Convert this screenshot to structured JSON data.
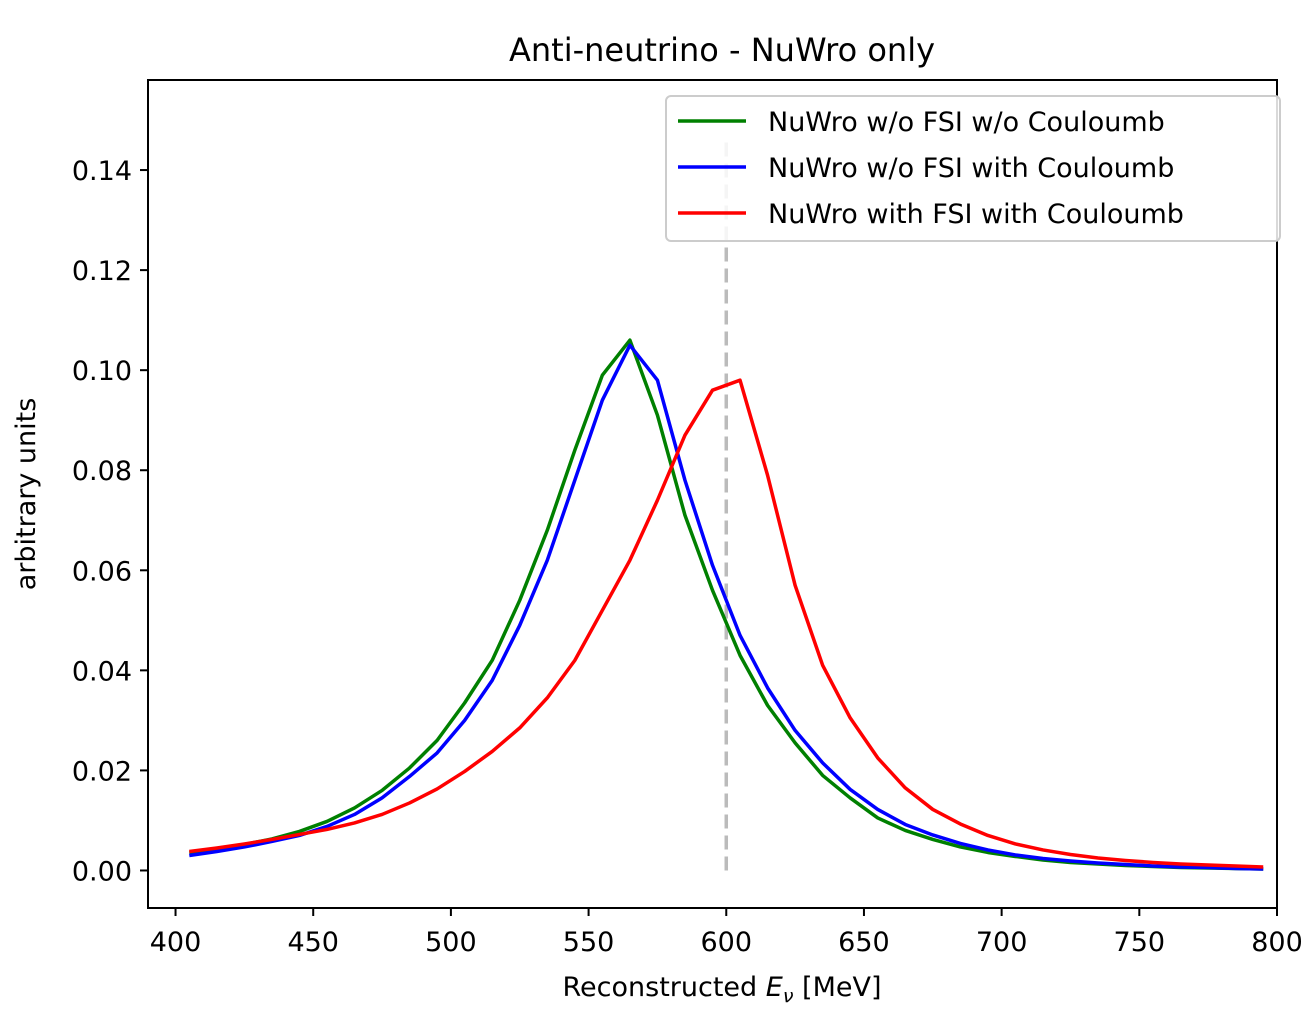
{
  "chart_data": {
    "type": "line",
    "title": "Anti-neutrino - NuWro only",
    "xlabel": {
      "prefix": "Reconstructed ",
      "symbol": "E",
      "subscript": "ν",
      "suffix": " [MeV]"
    },
    "ylabel": "arbitrary units",
    "xlim": [
      390,
      800
    ],
    "ylim": [
      -0.0075,
      0.158
    ],
    "xticks": [
      400,
      450,
      500,
      550,
      600,
      650,
      700,
      750,
      800
    ],
    "xtick_labels": [
      "400",
      "450",
      "500",
      "550",
      "600",
      "650",
      "700",
      "750",
      "800"
    ],
    "yticks": [
      0.0,
      0.02,
      0.04,
      0.06,
      0.08,
      0.1,
      0.12,
      0.14
    ],
    "ytick_labels": [
      "0.00",
      "0.02",
      "0.04",
      "0.06",
      "0.08",
      "0.10",
      "0.12",
      "0.14"
    ],
    "grid": false,
    "legend_position": "top-right",
    "vline": {
      "x": 600,
      "ymin": 0.0,
      "ymax": 0.146,
      "style": "dashed",
      "color": "#bbbbbb"
    },
    "x": [
      405,
      415,
      425,
      435,
      445,
      455,
      465,
      475,
      485,
      495,
      505,
      515,
      525,
      535,
      545,
      555,
      565,
      575,
      585,
      595,
      605,
      615,
      625,
      635,
      645,
      655,
      665,
      675,
      685,
      695,
      705,
      715,
      725,
      735,
      745,
      755,
      765,
      775,
      785,
      795
    ],
    "series": [
      {
        "name": "NuWro w/o FSI w/o Couloumb",
        "color": "#008000",
        "values": [
          0.0035,
          0.0042,
          0.0052,
          0.0063,
          0.0078,
          0.0098,
          0.0125,
          0.016,
          0.0205,
          0.026,
          0.0335,
          0.042,
          0.054,
          0.068,
          0.084,
          0.099,
          0.106,
          0.091,
          0.071,
          0.056,
          0.043,
          0.033,
          0.0255,
          0.019,
          0.0145,
          0.0105,
          0.008,
          0.0062,
          0.0047,
          0.0036,
          0.0028,
          0.0021,
          0.0016,
          0.0013,
          0.001,
          0.0008,
          0.0006,
          0.0005,
          0.0004,
          0.0003
        ]
      },
      {
        "name": "NuWro w/o FSI with Couloumb",
        "color": "#0000ff",
        "values": [
          0.003,
          0.0038,
          0.0047,
          0.0058,
          0.007,
          0.0088,
          0.0112,
          0.0145,
          0.0188,
          0.0235,
          0.03,
          0.038,
          0.049,
          0.062,
          0.078,
          0.094,
          0.105,
          0.098,
          0.078,
          0.061,
          0.047,
          0.0365,
          0.028,
          0.0215,
          0.0162,
          0.0122,
          0.0092,
          0.0071,
          0.0054,
          0.0041,
          0.0031,
          0.0024,
          0.0019,
          0.0015,
          0.0012,
          0.0009,
          0.0007,
          0.0006,
          0.0004,
          0.0003
        ]
      },
      {
        "name": "NuWro with FSI with Couloumb",
        "color": "#ff0000",
        "values": [
          0.0038,
          0.0045,
          0.0053,
          0.0062,
          0.0072,
          0.0082,
          0.0095,
          0.0112,
          0.0135,
          0.0163,
          0.0198,
          0.0238,
          0.0285,
          0.0345,
          0.042,
          0.052,
          0.062,
          0.074,
          0.087,
          0.096,
          0.098,
          0.079,
          0.057,
          0.041,
          0.0305,
          0.0225,
          0.0165,
          0.0122,
          0.0093,
          0.007,
          0.0053,
          0.0041,
          0.0032,
          0.0025,
          0.002,
          0.0016,
          0.0013,
          0.0011,
          0.0009,
          0.0007
        ]
      }
    ]
  }
}
